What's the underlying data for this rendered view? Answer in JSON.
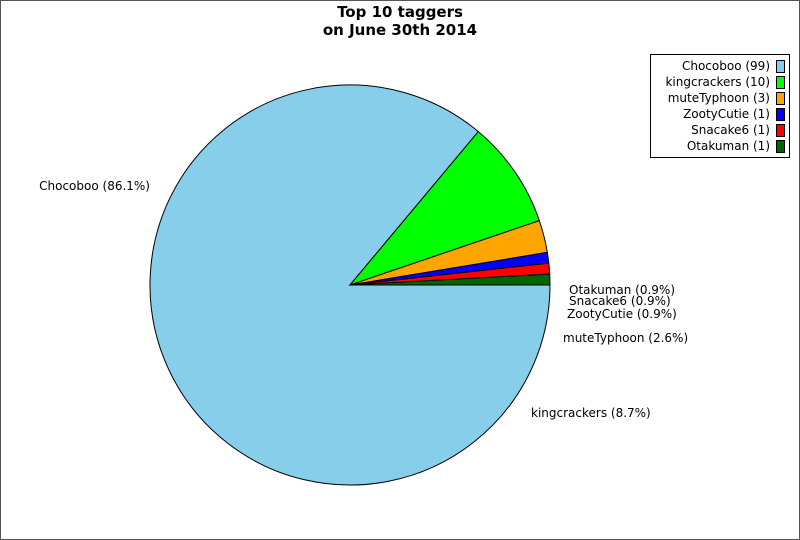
{
  "chart_data": {
    "type": "pie",
    "title_lines": [
      "Top 10 taggers",
      "on June 30th 2014"
    ],
    "slices": [
      {
        "name": "Chocoboo",
        "count": 99,
        "percent": 86.1,
        "color": "#87ceeb",
        "legend_label": "Chocoboo (99)",
        "slice_label": "Chocoboo (86.1%)"
      },
      {
        "name": "kingcrackers",
        "count": 10,
        "percent": 8.7,
        "color": "#00ff00",
        "legend_label": "kingcrackers (10)",
        "slice_label": "kingcrackers (8.7%)"
      },
      {
        "name": "muteTyphoon",
        "count": 3,
        "percent": 2.6,
        "color": "#ffa500",
        "legend_label": "muteTyphoon (3)",
        "slice_label": "muteTyphoon (2.6%)"
      },
      {
        "name": "ZootyCutie",
        "count": 1,
        "percent": 0.9,
        "color": "#0000ff",
        "legend_label": "ZootyCutie (1)",
        "slice_label": "ZootyCutie (0.9%)"
      },
      {
        "name": "Snacake6",
        "count": 1,
        "percent": 0.9,
        "color": "#ff0000",
        "legend_label": "Snacake6 (1)",
        "slice_label": "Snacake6 (0.9%)"
      },
      {
        "name": "Otakuman",
        "count": 1,
        "percent": 0.9,
        "color": "#006400",
        "legend_label": "Otakuman (1)",
        "slice_label": "Otakuman (0.9%)"
      }
    ],
    "direction": "clockwise",
    "legend_position": "top-right"
  }
}
